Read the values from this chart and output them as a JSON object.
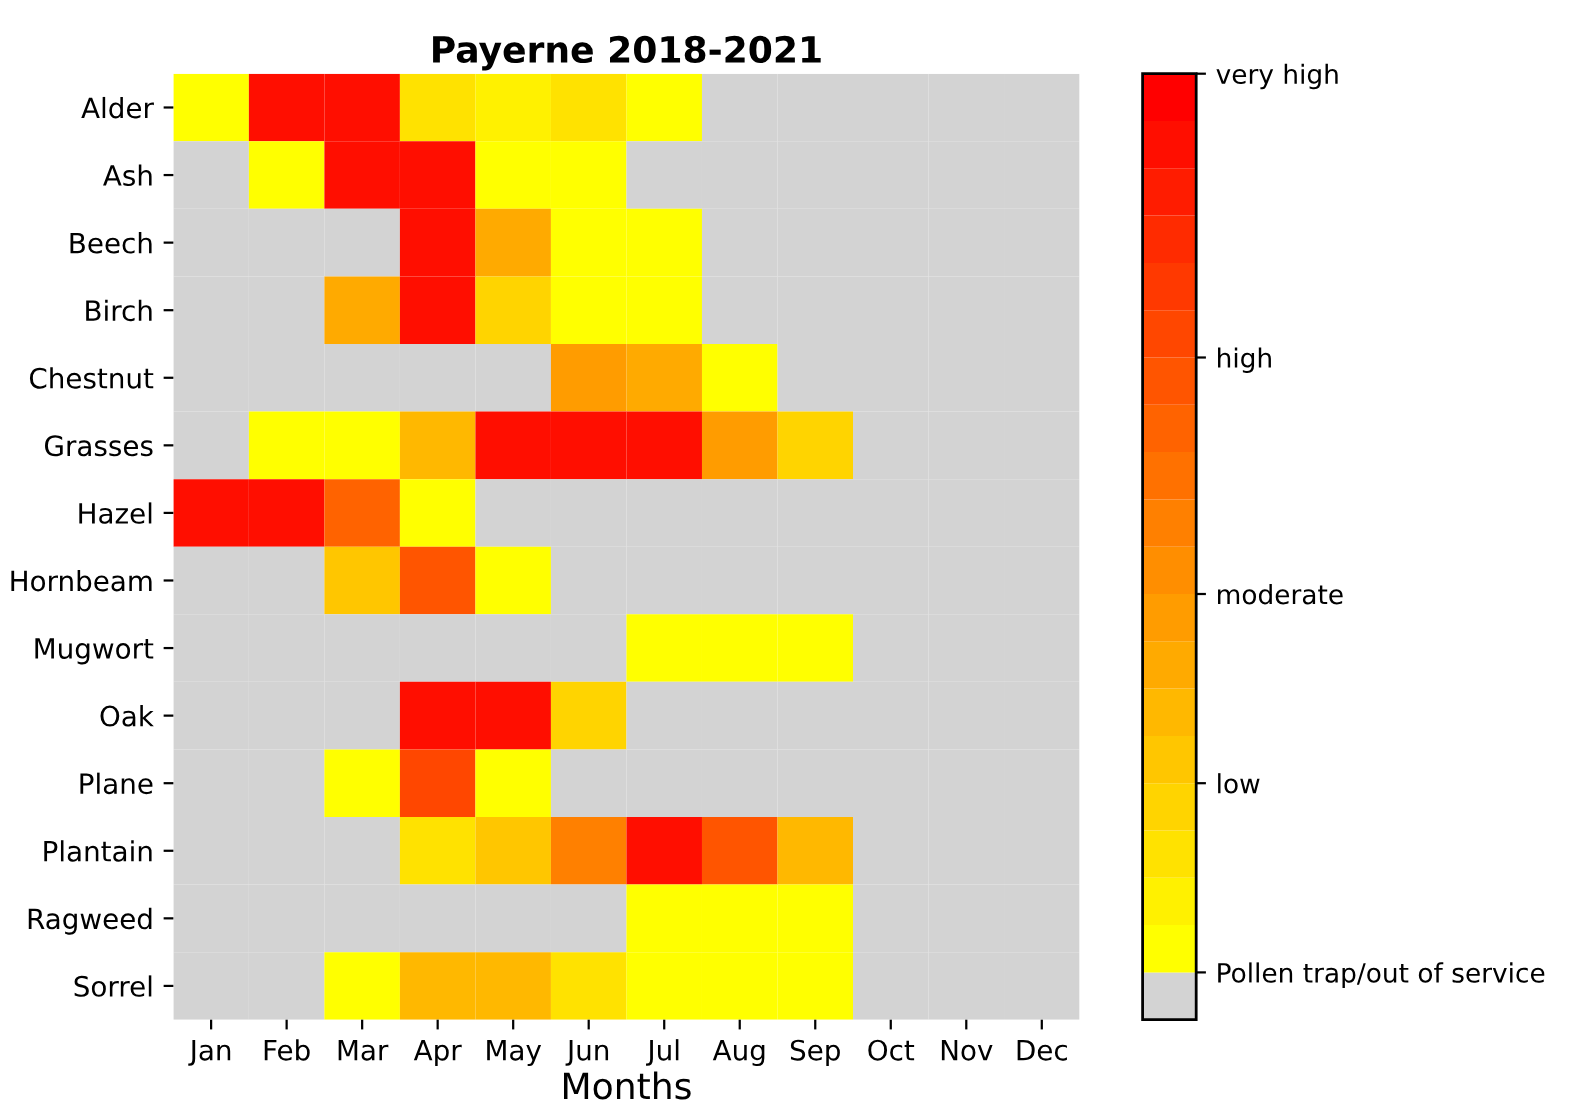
{
  "chart_data": {
    "type": "heatmap",
    "title": "Payerne 2018-2021",
    "xlabel": "Months",
    "categories": [
      "Jan",
      "Feb",
      "Mar",
      "Apr",
      "May",
      "Jun",
      "Jul",
      "Aug",
      "Sep",
      "Oct",
      "Nov",
      "Dec"
    ],
    "y_categories": [
      "Alder",
      "Ash",
      "Beech",
      "Birch",
      "Chestnut",
      "Grasses",
      "Hazel",
      "Hornbeam",
      "Mugwort",
      "Oak",
      "Plane",
      "Plantain",
      "Ragweed",
      "Sorrel"
    ],
    "cells": [
      [
        1,
        18,
        18,
        3,
        2,
        3,
        1,
        0,
        0,
        0,
        0,
        0
      ],
      [
        0,
        1,
        18,
        18,
        1,
        1,
        0,
        0,
        0,
        0,
        0,
        0
      ],
      [
        0,
        0,
        0,
        18,
        7,
        1,
        1,
        0,
        0,
        0,
        0,
        0
      ],
      [
        0,
        0,
        7,
        18,
        4,
        1,
        1,
        0,
        0,
        0,
        0,
        0
      ],
      [
        0,
        0,
        0,
        0,
        0,
        8,
        7,
        1,
        0,
        0,
        0,
        0
      ],
      [
        0,
        1,
        1,
        6,
        18,
        18,
        18,
        8,
        4,
        0,
        0,
        0
      ],
      [
        18,
        18,
        12,
        1,
        0,
        0,
        0,
        0,
        0,
        0,
        0,
        0
      ],
      [
        0,
        0,
        5,
        13,
        1,
        0,
        0,
        0,
        0,
        0,
        0,
        0
      ],
      [
        0,
        0,
        0,
        0,
        0,
        0,
        1,
        1,
        1,
        0,
        0,
        0
      ],
      [
        0,
        0,
        0,
        18,
        18,
        4,
        0,
        0,
        0,
        0,
        0,
        0
      ],
      [
        0,
        0,
        1,
        14,
        1,
        0,
        0,
        0,
        0,
        0,
        0,
        0
      ],
      [
        0,
        0,
        0,
        3,
        5,
        10,
        18,
        13,
        6,
        0,
        0,
        0
      ],
      [
        0,
        0,
        0,
        0,
        0,
        0,
        1,
        1,
        1,
        0,
        0,
        0
      ],
      [
        0,
        0,
        1,
        6,
        6,
        3,
        1,
        1,
        1,
        0,
        0,
        0
      ]
    ],
    "clim": [
      -0.5,
      19.5
    ],
    "cticks": [
      {
        "value": 0.5,
        "label": "Pollen trap/out of service"
      },
      {
        "value": 4.5,
        "label": "low"
      },
      {
        "value": 8.5,
        "label": "moderate"
      },
      {
        "value": 13.5,
        "label": "high"
      },
      {
        "value": 19.5,
        "label": "very high"
      }
    ],
    "colors": [
      "#d3d3d3",
      "#ffff00",
      "#fff100",
      "#ffe200",
      "#ffd400",
      "#ffc600",
      "#ffb800",
      "#ffaa00",
      "#ff9c00",
      "#ff8e00",
      "#ff8000",
      "#ff7100",
      "#ff6300",
      "#ff5500",
      "#ff4700",
      "#ff3900",
      "#ff2b00",
      "#ff1c00",
      "#ff0e00",
      "#ff0000"
    ],
    "grid": false
  }
}
